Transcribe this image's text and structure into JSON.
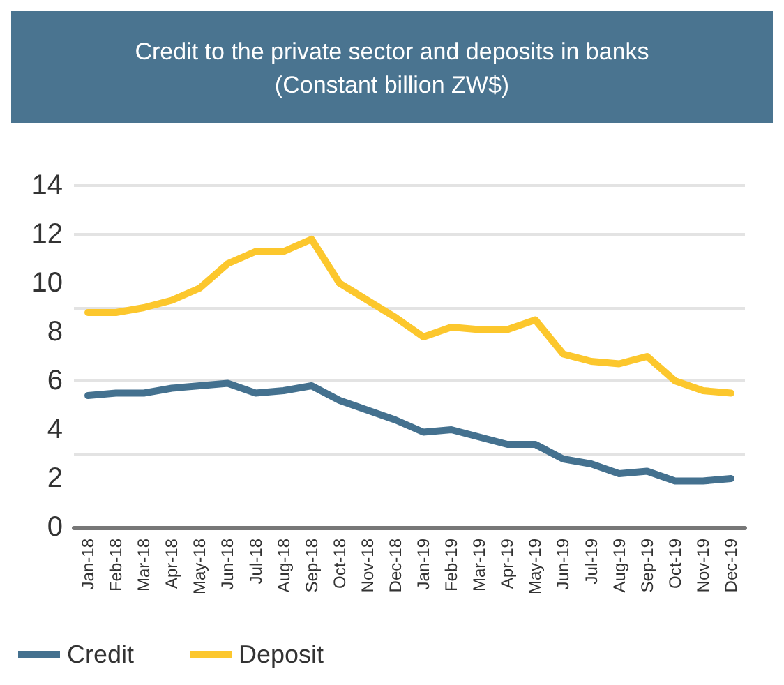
{
  "chart_data": {
    "type": "line",
    "title": "Credit to the private sector and deposits in banks\n(Constant billion ZW$)",
    "categories": [
      "Jan-18",
      "Feb-18",
      "Mar-18",
      "Apr-18",
      "May-18",
      "Jun-18",
      "Jul-18",
      "Aug-18",
      "Sep-18",
      "Oct-18",
      "Nov-18",
      "Dec-18",
      "Jan-19",
      "Feb-19",
      "Mar-19",
      "Apr-19",
      "May-19",
      "Jun-19",
      "Jul-19",
      "Aug-19",
      "Sep-19",
      "Oct-19",
      "Nov-19",
      "Dec-19"
    ],
    "series": [
      {
        "name": "Credit",
        "color": "#44718f",
        "values": [
          5.4,
          5.5,
          5.5,
          5.7,
          5.8,
          5.9,
          5.5,
          5.6,
          5.8,
          5.2,
          4.8,
          4.4,
          3.9,
          4.0,
          3.7,
          3.4,
          3.4,
          2.8,
          2.6,
          2.2,
          2.3,
          1.9,
          1.9,
          2.0
        ]
      },
      {
        "name": "Deposit",
        "color": "#fcc72d",
        "values": [
          8.8,
          8.8,
          9.0,
          9.3,
          9.8,
          10.8,
          11.3,
          11.3,
          11.8,
          10.0,
          9.3,
          8.6,
          7.8,
          8.2,
          8.1,
          8.1,
          8.5,
          7.1,
          6.8,
          6.7,
          7.0,
          6.0,
          5.6,
          5.5
        ]
      }
    ],
    "ylim": [
      0,
      14
    ],
    "yticks": [
      0,
      2,
      4,
      6,
      8,
      10,
      12,
      14
    ],
    "grid": "y",
    "legend": "bottom left",
    "marker": "none",
    "line_style": "solid"
  }
}
